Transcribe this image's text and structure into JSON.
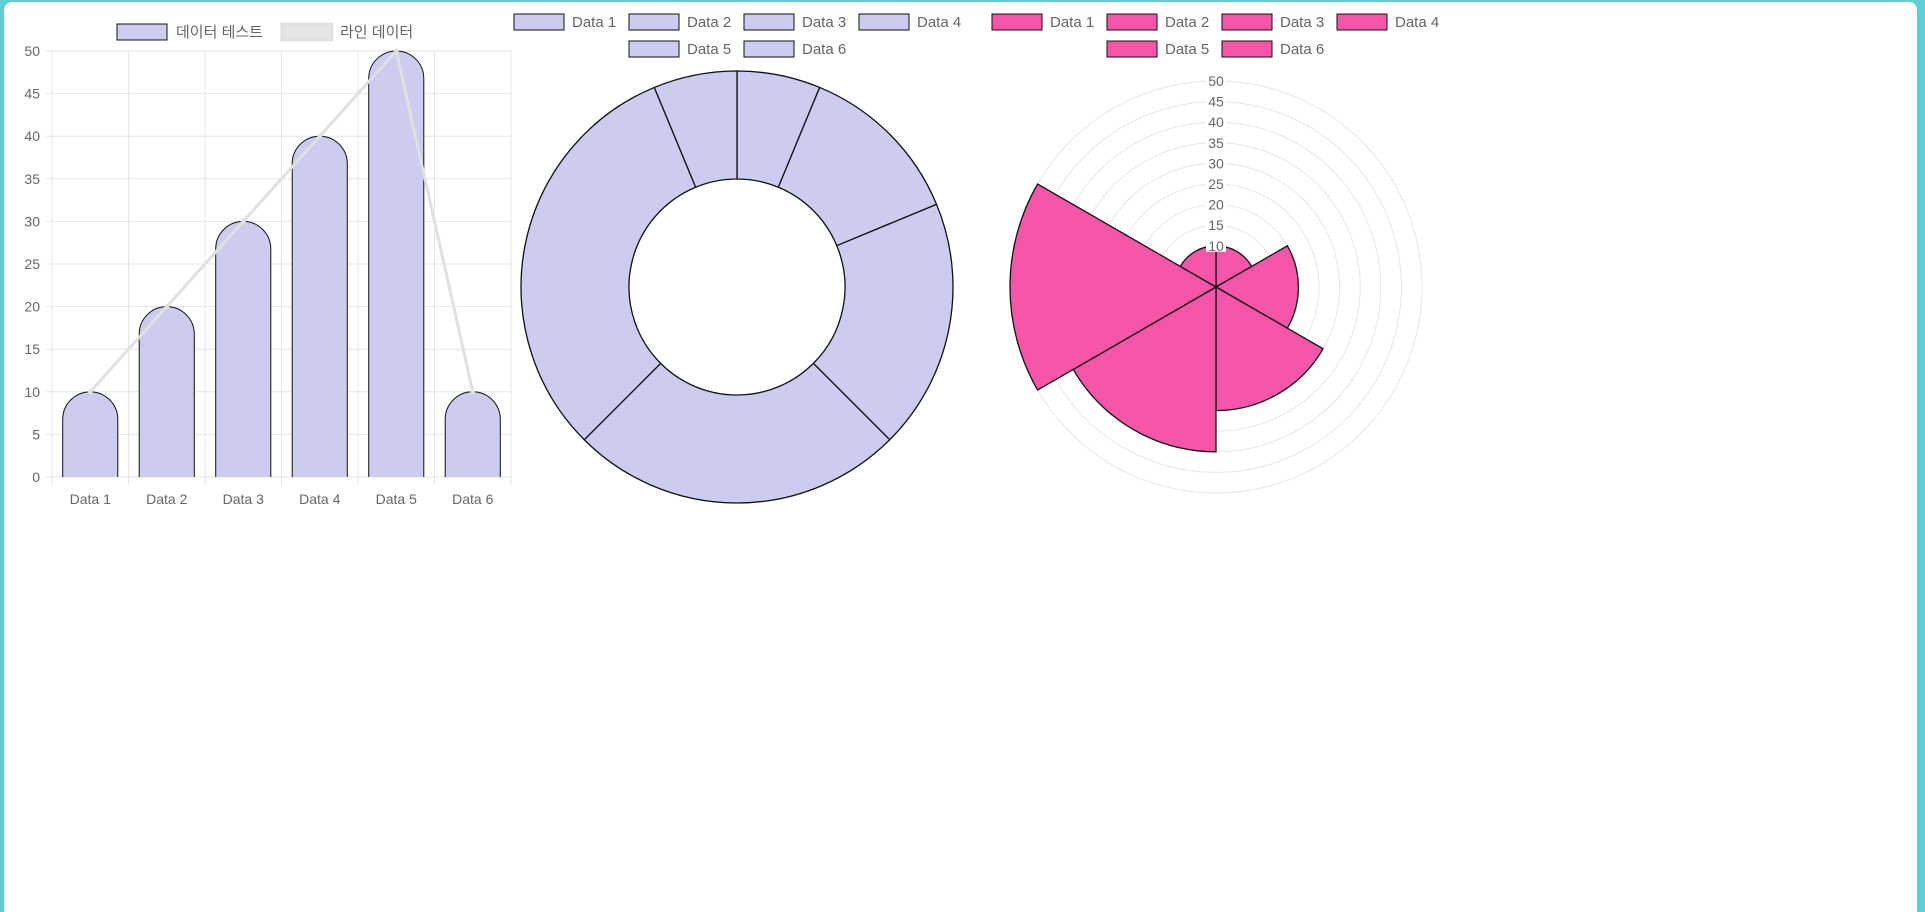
{
  "colors": {
    "bar_fill": "#cccbf0",
    "line_stroke": "#e0e0e0",
    "donut_fill": "#cccbf0",
    "polar_fill": "#f755a8",
    "border": "#111111",
    "frame": "#5ecfd6"
  },
  "chart_data": [
    {
      "type": "bar",
      "categories": [
        "Data 1",
        "Data 2",
        "Data 3",
        "Data 4",
        "Data 5",
        "Data 6"
      ],
      "series": [
        {
          "name": "데이터 테스트",
          "type": "bar",
          "values": [
            10,
            20,
            30,
            40,
            50,
            10
          ]
        },
        {
          "name": "라인 데이터",
          "type": "line",
          "values": [
            10,
            20,
            30,
            40,
            50,
            10
          ]
        }
      ],
      "yticks": [
        "0",
        "5",
        "10",
        "15",
        "20",
        "25",
        "30",
        "35",
        "40",
        "45",
        "50"
      ],
      "ylim": [
        0,
        50
      ],
      "grid": true,
      "legend": "top"
    },
    {
      "type": "pie",
      "variant": "doughnut",
      "labels": [
        "Data 1",
        "Data 2",
        "Data 3",
        "Data 4",
        "Data 5",
        "Data 6"
      ],
      "values": [
        10,
        20,
        30,
        40,
        50,
        10
      ],
      "legend": "top"
    },
    {
      "type": "pie",
      "variant": "polarArea",
      "labels": [
        "Data 1",
        "Data 2",
        "Data 3",
        "Data 4",
        "Data 5",
        "Data 6"
      ],
      "values": [
        10,
        20,
        30,
        40,
        50,
        10
      ],
      "rticks": [
        "10",
        "15",
        "20",
        "25",
        "30",
        "35",
        "40",
        "45",
        "50"
      ],
      "rlim": [
        0,
        50
      ],
      "grid": true,
      "legend": "top"
    }
  ]
}
